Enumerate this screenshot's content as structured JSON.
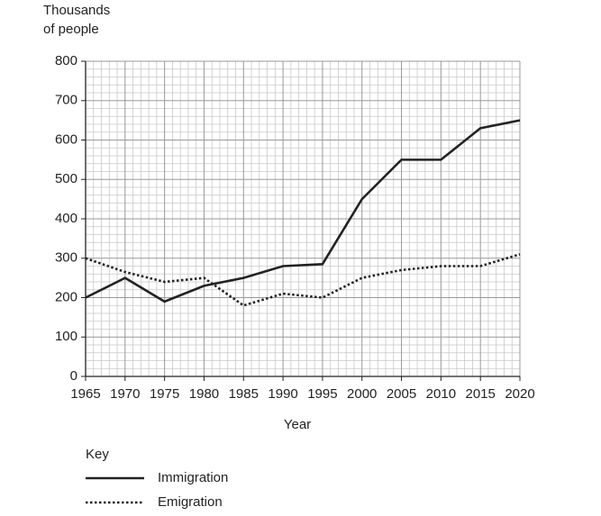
{
  "chart_data": {
    "type": "line",
    "y_label": [
      "Thousands",
      "of people"
    ],
    "x_label": "Year",
    "legend_title": "Key",
    "x": [
      1965,
      1970,
      1975,
      1980,
      1985,
      1990,
      1995,
      2000,
      2005,
      2010,
      2015,
      2020
    ],
    "series": [
      {
        "name": "Immigration",
        "color": "#222222",
        "style": "solid",
        "values": [
          200,
          250,
          190,
          230,
          250,
          280,
          285,
          450,
          550,
          550,
          630,
          650
        ]
      },
      {
        "name": "Emigration",
        "color": "#222222",
        "style": "dotted",
        "values": [
          300,
          265,
          240,
          250,
          180,
          210,
          200,
          250,
          270,
          280,
          280,
          310
        ]
      }
    ],
    "xlim": [
      1965,
      2020
    ],
    "xticks": [
      1965,
      1970,
      1975,
      1980,
      1985,
      1990,
      1995,
      2000,
      2005,
      2010,
      2015,
      2020
    ],
    "ylim": [
      0,
      800
    ],
    "yticks": [
      0,
      100,
      200,
      300,
      400,
      500,
      600,
      700,
      800
    ],
    "grid": true
  }
}
